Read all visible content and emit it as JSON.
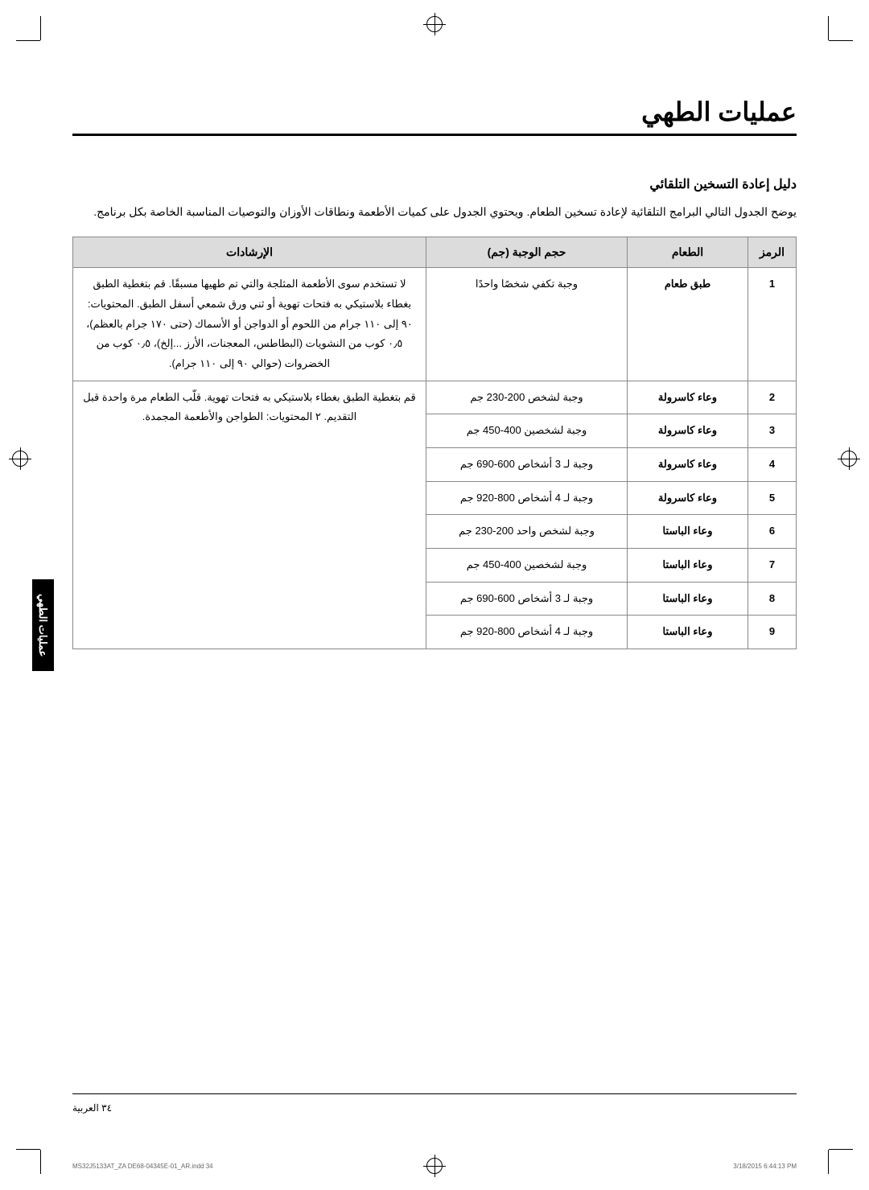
{
  "title": "عمليات الطهي",
  "section_title": "دليل إعادة التسخين التلقائي",
  "intro": "يوضح الجدول التالي البرامج التلقائية لإعادة تسخين الطعام. ويحتوي الجدول على كميات الأطعمة ونطاقات الأوزان والتوصيات المناسبة الخاصة بكل برنامج.",
  "headers": {
    "code": "الرمز",
    "food": "الطعام",
    "serving": "حجم الوجبة (جم)",
    "instructions": "الإرشادات"
  },
  "rows": [
    {
      "code": "1",
      "food": "طبق طعام",
      "serving": "وجبة تكفي شخصًا واحدًا",
      "instructions": "لا تستخدم سوى الأطعمة المثلجة والتي تم طهيها مسبقًا. قم بتغطية الطبق بغطاء بلاستيكي به فتحات تهوية أو ثني ورق شمعي أسفل الطبق. المحتويات: ٩٠ إلى ١١٠ جرام من اللحوم أو الدواجن أو الأسماك (حتى ١٧٠ جرام بالعظم)، ٠٫٥ كوب من النشويات (البطاطس، المعجنات، الأرز ...إلخ)، ٠٫٥ كوب من الخضروات (حوالي ٩٠ إلى ١١٠ جرام)."
    },
    {
      "code": "2",
      "food": "وعاء كاسرولة",
      "serving": "وجبة لشخص 200-230 جم",
      "instructions": "قم بتغطية الطبق بغطاء بلاستيكي به فتحات تهوية. قلّب الطعام مرة واحدة قبل التقديم. ٢ المحتويات: الطواجن والأطعمة المجمدة."
    },
    {
      "code": "3",
      "food": "وعاء كاسرولة",
      "serving": "وجبة لشخصين 400-450 جم",
      "instructions": ""
    },
    {
      "code": "4",
      "food": "وعاء كاسرولة",
      "serving": "وجبة لـ 3 أشخاص 600-690 جم",
      "instructions": ""
    },
    {
      "code": "5",
      "food": "وعاء كاسرولة",
      "serving": "وجبة لـ 4 أشخاص 800-920 جم",
      "instructions": ""
    },
    {
      "code": "6",
      "food": "وعاء الباستا",
      "serving": "وجبة لشخص واحد 200-230 جم",
      "instructions": ""
    },
    {
      "code": "7",
      "food": "وعاء الباستا",
      "serving": "وجبة لشخصين 400-450 جم",
      "instructions": ""
    },
    {
      "code": "8",
      "food": "وعاء الباستا",
      "serving": "وجبة لـ 3 أشخاص 600-690 جم",
      "instructions": ""
    },
    {
      "code": "9",
      "food": "وعاء الباستا",
      "serving": "وجبة لـ 4 أشخاص 800-920 جم",
      "instructions": ""
    }
  ],
  "side_tab": "عمليات الطهي",
  "page_number": "٣٤   العربية",
  "print_left": "MS32J5133AT_ZA DE68-04345E-01_AR.indd   34",
  "print_right": "3/18/2015   6:44:13 PM"
}
